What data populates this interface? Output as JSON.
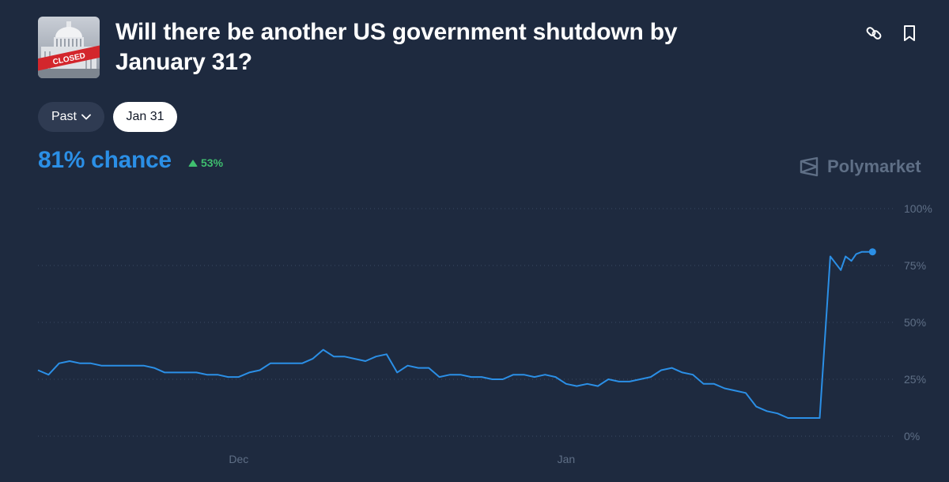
{
  "header": {
    "title": "Will there be another US government shutdown by January 31?",
    "thumbnail_icon": "capitol-closed-thumbnail",
    "thumbnail_text": "CLOSED",
    "actions": [
      {
        "icon": "link-icon"
      },
      {
        "icon": "bookmark-icon"
      }
    ]
  },
  "filters": {
    "past_label": "Past",
    "date_label": "Jan 31"
  },
  "summary": {
    "chance_label": "81% chance",
    "change_label": "53%",
    "change_direction": "up"
  },
  "brand": {
    "name": "Polymarket",
    "icon": "polymarket-logo-icon"
  },
  "colors": {
    "background": "#1e2a3f",
    "line": "#2b8fe6",
    "up": "#3fbf6f",
    "grid": "#3a4a63",
    "axis_text": "#5f6f86"
  },
  "chart_data": {
    "type": "line",
    "title": "",
    "xlabel": "",
    "ylabel": "",
    "ylim": [
      0,
      100
    ],
    "yticks": [
      0,
      25,
      50,
      75,
      100
    ],
    "ytick_labels": [
      "0%",
      "25%",
      "50%",
      "75%",
      "100%"
    ],
    "x_range": [
      "2025-11-12",
      "2026-02-01"
    ],
    "xticks": [
      {
        "label": "Dec",
        "date": "2025-12-01"
      },
      {
        "label": "Jan",
        "date": "2026-01-01"
      }
    ],
    "grid": true,
    "series": [
      {
        "values_unit": "percent",
        "x": [
          "2025-11-12",
          "2025-11-13",
          "2025-11-14",
          "2025-11-15",
          "2025-11-16",
          "2025-11-17",
          "2025-11-18",
          "2025-11-19",
          "2025-11-20",
          "2025-11-21",
          "2025-11-22",
          "2025-11-23",
          "2025-11-24",
          "2025-11-25",
          "2025-11-26",
          "2025-11-27",
          "2025-11-28",
          "2025-11-29",
          "2025-11-30",
          "2025-12-01",
          "2025-12-02",
          "2025-12-03",
          "2025-12-04",
          "2025-12-05",
          "2025-12-06",
          "2025-12-07",
          "2025-12-08",
          "2025-12-09",
          "2025-12-10",
          "2025-12-11",
          "2025-12-12",
          "2025-12-13",
          "2025-12-14",
          "2025-12-15",
          "2025-12-16",
          "2025-12-17",
          "2025-12-18",
          "2025-12-19",
          "2025-12-20",
          "2025-12-21",
          "2025-12-22",
          "2025-12-23",
          "2025-12-24",
          "2025-12-25",
          "2025-12-26",
          "2025-12-27",
          "2025-12-28",
          "2025-12-29",
          "2025-12-30",
          "2025-12-31",
          "2026-01-01",
          "2026-01-02",
          "2026-01-03",
          "2026-01-04",
          "2026-01-05",
          "2026-01-06",
          "2026-01-07",
          "2026-01-08",
          "2026-01-09",
          "2026-01-10",
          "2026-01-11",
          "2026-01-12",
          "2026-01-13",
          "2026-01-14",
          "2026-01-15",
          "2026-01-16",
          "2026-01-17",
          "2026-01-18",
          "2026-01-19",
          "2026-01-20",
          "2026-01-21",
          "2026-01-22",
          "2026-01-23",
          "2026-01-24",
          "2026-01-25",
          "2026-01-26",
          "2026-01-27",
          "2026-01-27",
          "2026-01-28",
          "2026-01-28",
          "2026-01-29",
          "2026-01-30"
        ],
        "values": [
          29,
          27,
          32,
          33,
          32,
          32,
          31,
          31,
          31,
          31,
          31,
          30,
          28,
          28,
          28,
          28,
          27,
          27,
          26,
          26,
          28,
          29,
          32,
          32,
          32,
          32,
          34,
          38,
          35,
          35,
          34,
          33,
          35,
          36,
          28,
          31,
          30,
          30,
          26,
          27,
          27,
          26,
          26,
          25,
          25,
          27,
          27,
          26,
          27,
          26,
          23,
          22,
          23,
          22,
          25,
          24,
          24,
          25,
          26,
          29,
          30,
          28,
          27,
          23,
          23,
          21,
          20,
          19,
          13,
          11,
          10,
          8,
          8,
          8,
          8,
          79,
          73,
          79,
          77,
          80,
          81,
          81
        ]
      }
    ]
  }
}
